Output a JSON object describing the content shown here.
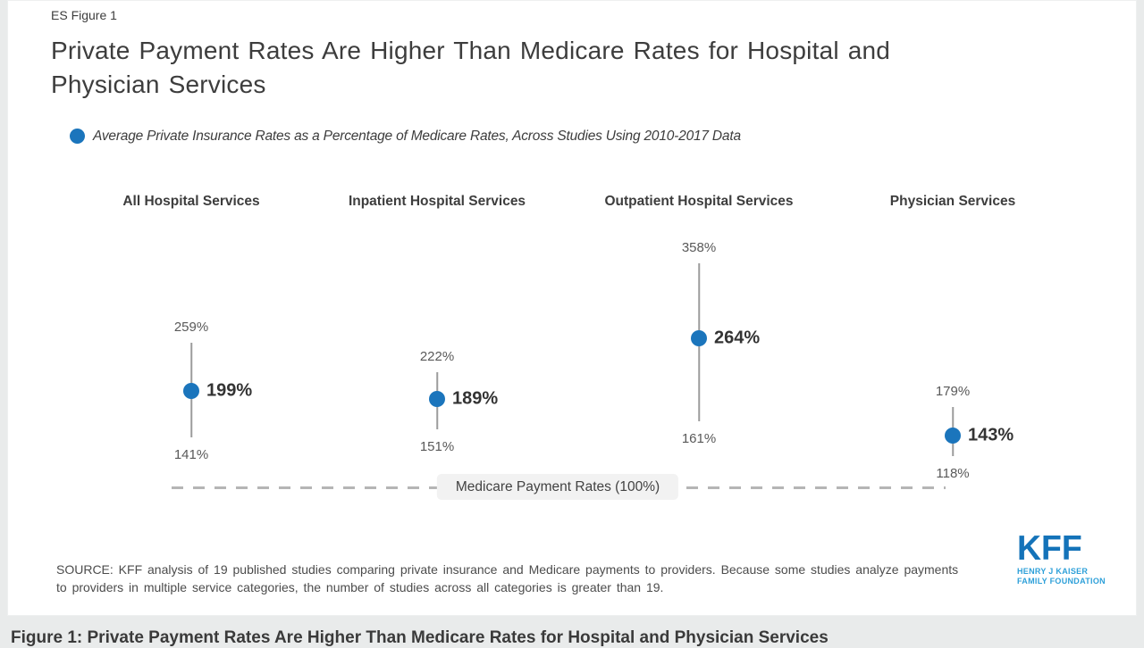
{
  "page": {
    "eyebrow": "ES Figure 1",
    "title": "Private Payment Rates Are Higher Than Medicare Rates for Hospital and Physician Services",
    "legend_label": "Average Private Insurance Rates as a Percentage of Medicare Rates, Across Studies Using 2010-2017 Data",
    "source_note": "SOURCE: KFF analysis of 19 published studies comparing private insurance and Medicare payments to providers. Because some studies analyze payments to providers in multiple service categories, the number of studies across all categories is greater than 19.",
    "caption": "Figure 1: Private Payment Rates Are Higher Than Medicare Rates for Hospital and Physician Services",
    "logo": {
      "text": "KFF",
      "subtitle_line1": "HENRY J KAISER",
      "subtitle_line2": "FAMILY FOUNDATION"
    }
  },
  "colors": {
    "accent_blue": "#1b75bc",
    "logo_blue": "#1473b9",
    "logo_light_blue": "#2ea0d9",
    "text_dark": "#3d3d3d",
    "label_gray": "#595959",
    "range_line_gray": "#9c9c9c",
    "dash_gray": "#b5b5b5",
    "pill_bg": "#f2f2f2",
    "page_bg": "#e9ebeb",
    "card_bg": "#ffffff"
  },
  "chart_data": {
    "type": "scatter",
    "subtype": "dot-range",
    "title": "Private Payment Rates Are Higher Than Medicare Rates for Hospital and Physician Services",
    "legend": "Average Private Insurance Rates as a Percentage of Medicare Rates, Across Studies Using 2010-2017 Data",
    "legend_position": "top-left",
    "value_suffix": "%",
    "ylim": [
      100,
      380
    ],
    "grid": false,
    "baseline": {
      "label": "Medicare Payment Rates (100%)",
      "value": 100,
      "style": "dashed"
    },
    "categories": [
      "All Hospital Services",
      "Inpatient Hospital Services",
      "Outpatient Hospital Services",
      "Physician Services"
    ],
    "points": [
      {
        "category": "All Hospital Services",
        "high": 259,
        "average": 199,
        "low": 141
      },
      {
        "category": "Inpatient Hospital Services",
        "high": 222,
        "average": 189,
        "low": 151
      },
      {
        "category": "Outpatient Hospital Services",
        "high": 358,
        "average": 264,
        "low": 161
      },
      {
        "category": "Physician Services",
        "high": 179,
        "average": 143,
        "low": 118
      }
    ]
  }
}
